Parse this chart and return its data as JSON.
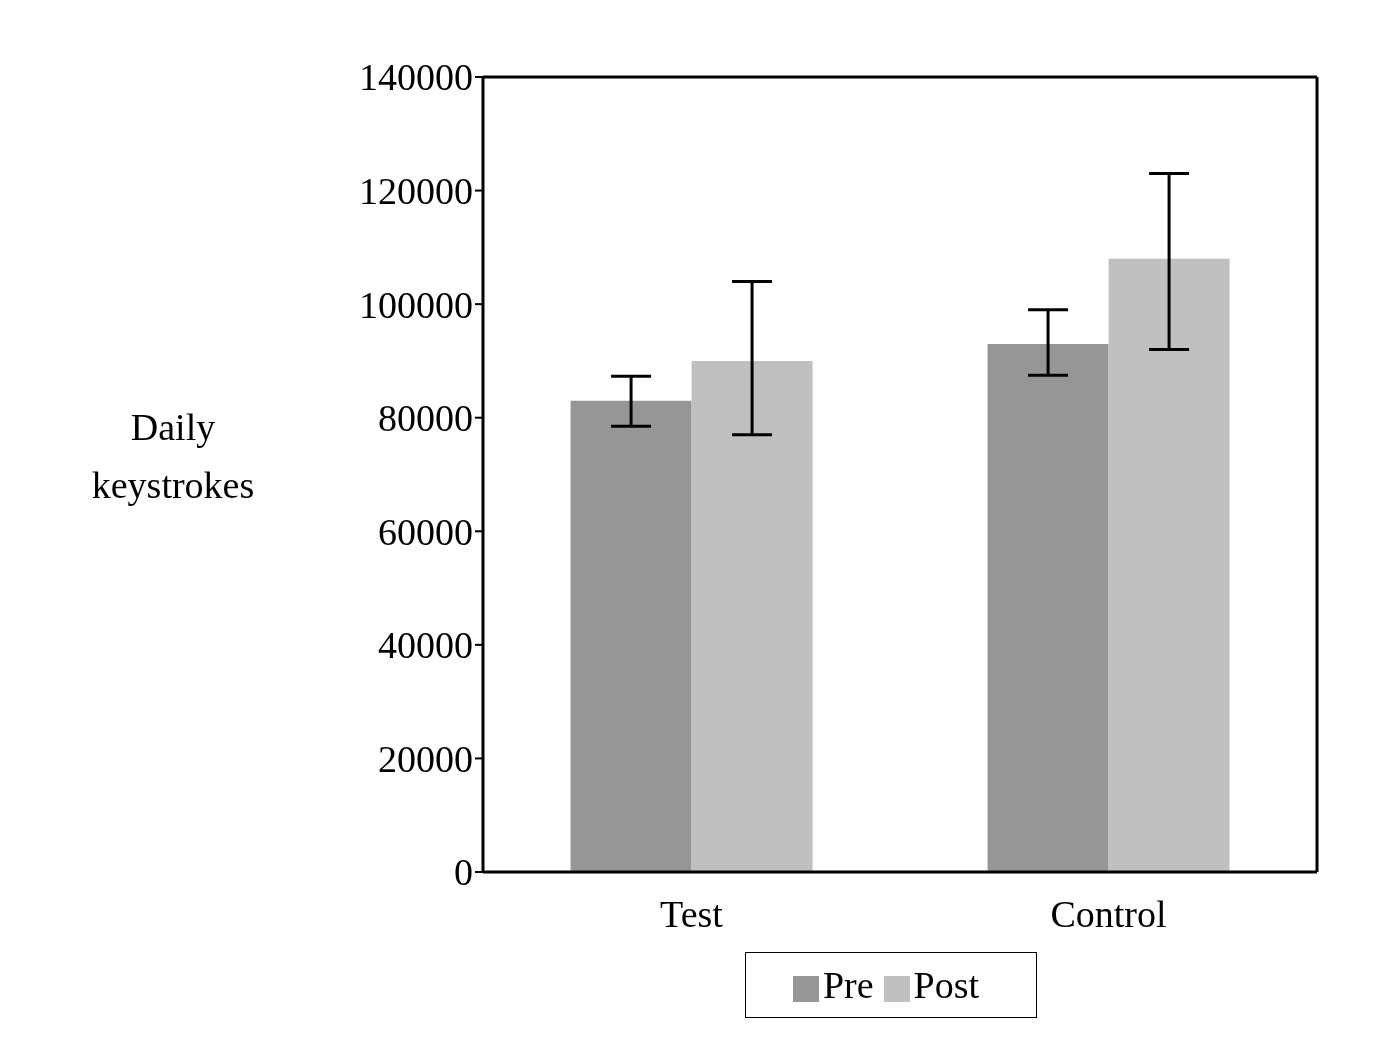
{
  "chart_data": {
    "type": "bar",
    "ylabel": "Daily keystrokes",
    "categories": [
      "Test",
      "Control"
    ],
    "series": [
      {
        "name": "Pre",
        "color": "#969696",
        "values": [
          83000,
          93000
        ],
        "errors": [
          [
            78500,
            87300
          ],
          [
            87500,
            99000
          ]
        ]
      },
      {
        "name": "Post",
        "color": "#c0c0c0",
        "values": [
          90000,
          108000
        ],
        "errors": [
          [
            77000,
            104000
          ],
          [
            92000,
            123000
          ]
        ]
      }
    ],
    "ylim": [
      0,
      140000
    ],
    "yticks": [
      0,
      20000,
      40000,
      60000,
      80000,
      100000,
      120000,
      140000
    ],
    "grid": false,
    "legend": "bottom"
  }
}
